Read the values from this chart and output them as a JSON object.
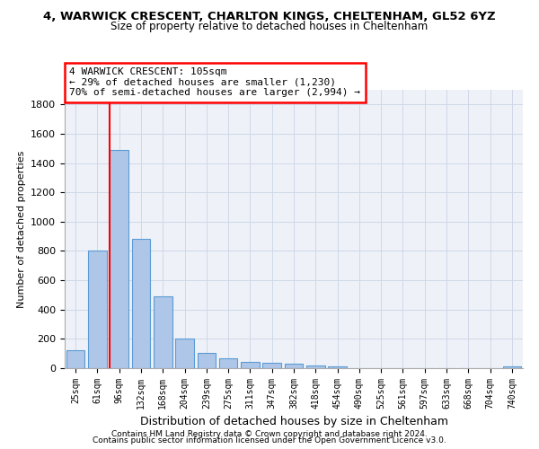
{
  "title1": "4, WARWICK CRESCENT, CHARLTON KINGS, CHELTENHAM, GL52 6YZ",
  "title2": "Size of property relative to detached houses in Cheltenham",
  "xlabel": "Distribution of detached houses by size in Cheltenham",
  "ylabel": "Number of detached properties",
  "footer1": "Contains HM Land Registry data © Crown copyright and database right 2024.",
  "footer2": "Contains public sector information licensed under the Open Government Licence v3.0.",
  "categories": [
    "25sqm",
    "61sqm",
    "96sqm",
    "132sqm",
    "168sqm",
    "204sqm",
    "239sqm",
    "275sqm",
    "311sqm",
    "347sqm",
    "382sqm",
    "418sqm",
    "454sqm",
    "490sqm",
    "525sqm",
    "561sqm",
    "597sqm",
    "633sqm",
    "668sqm",
    "704sqm",
    "740sqm"
  ],
  "bar_values": [
    125,
    800,
    1490,
    880,
    490,
    205,
    105,
    65,
    40,
    35,
    30,
    20,
    10,
    0,
    0,
    0,
    0,
    0,
    0,
    0,
    15
  ],
  "bar_color": "#aec6e8",
  "bar_edgecolor": "#5b9bd5",
  "ylim": [
    0,
    1900
  ],
  "yticks": [
    0,
    200,
    400,
    600,
    800,
    1000,
    1200,
    1400,
    1600,
    1800
  ],
  "vline_x_index": 2,
  "vline_color": "red",
  "annotation_line1": "4 WARWICK CRESCENT: 105sqm",
  "annotation_line2": "← 29% of detached houses are smaller (1,230)",
  "annotation_line3": "70% of semi-detached houses are larger (2,994) →",
  "grid_color": "#d0d8e8",
  "bg_color": "#eef2f8"
}
